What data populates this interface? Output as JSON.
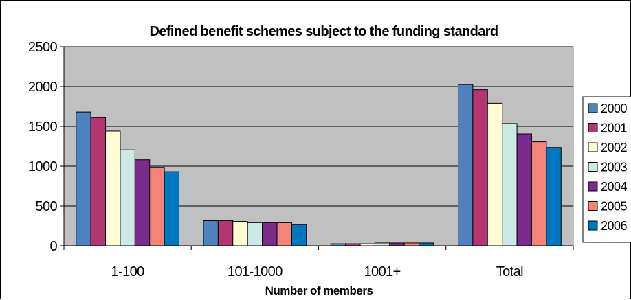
{
  "chart_data": {
    "type": "bar",
    "title": "Defined benefit schemes subject to the funding standard",
    "xlabel": "Number of members",
    "ylabel": "",
    "categories": [
      "1-100",
      "101-1000",
      "1001+",
      "Total"
    ],
    "ylim": [
      0,
      2500
    ],
    "yticks": [
      "0",
      "500",
      "1000",
      "1500",
      "2000",
      "2500"
    ],
    "grid": true,
    "legend_position": "right",
    "series": [
      {
        "name": "2000",
        "color": "#4F81BD",
        "values": [
          1680,
          315,
          25,
          2025
        ]
      },
      {
        "name": "2001",
        "color": "#B43670",
        "values": [
          1610,
          315,
          25,
          1960
        ]
      },
      {
        "name": "2002",
        "color": "#FFFBD7",
        "values": [
          1440,
          305,
          25,
          1790
        ]
      },
      {
        "name": "2003",
        "color": "#CBEAE6",
        "values": [
          1205,
          290,
          35,
          1535
        ]
      },
      {
        "name": "2004",
        "color": "#7B2A8D",
        "values": [
          1080,
          290,
          35,
          1405
        ]
      },
      {
        "name": "2005",
        "color": "#F48478",
        "values": [
          985,
          290,
          35,
          1305
        ]
      },
      {
        "name": "2006",
        "color": "#0077C1",
        "values": [
          930,
          265,
          35,
          1235
        ]
      }
    ]
  }
}
